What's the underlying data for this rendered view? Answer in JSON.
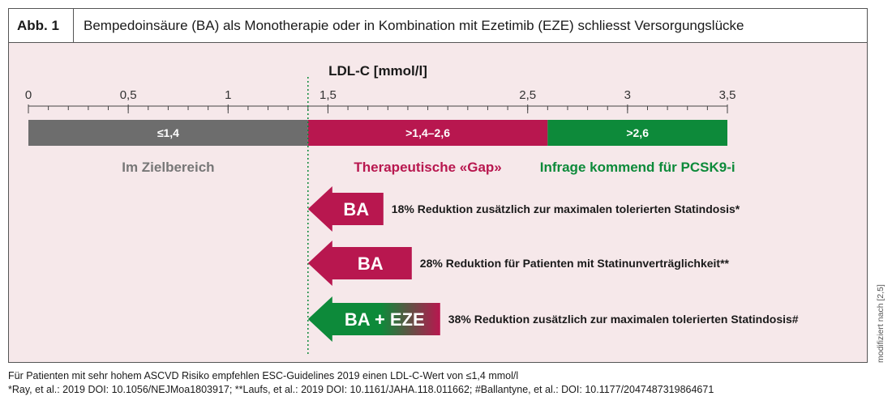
{
  "figure": {
    "label": "Abb. 1",
    "title": "Bempedoinsäure (BA) als Monotherapie oder in Kombination mit Ezetimib (EZE) schliesst Versorgungslücke"
  },
  "chart_data": {
    "type": "bar",
    "title": "LDL-C [mmol/l]",
    "axis": {
      "min": 0,
      "max": 3.5,
      "major_ticks": [
        0,
        0.5,
        1,
        1.5,
        2.5,
        3,
        3.5
      ],
      "major_labels": [
        "0",
        "0,5",
        "1",
        "1,5",
        "2,5",
        "3",
        "3,5"
      ],
      "minor_step": 0.1
    },
    "threshold": 1.4,
    "segments": [
      {
        "from": 0,
        "to": 1.4,
        "label": "≤1,4",
        "category": "Im Zielbereich",
        "color": "#6d6d6d",
        "text_color": "#777777"
      },
      {
        "from": 1.4,
        "to": 2.6,
        "label": ">1,4–2,6",
        "category": "Therapeutische «Gap»",
        "color": "#b8174f",
        "text_color": "#b8174f"
      },
      {
        "from": 2.6,
        "to": 3.5,
        "label": ">2,6",
        "category": "Infrage kommend für PCSK9-i",
        "color": "#0d8a3a",
        "text_color": "#0d8a3a"
      }
    ],
    "arrows": [
      {
        "label": "BA",
        "reduction_pct": 18,
        "text": "18% Reduktion zusätzlich zur maximalen tolerierten Statindosis*",
        "color": "#b8174f",
        "gradient": false
      },
      {
        "label": "BA",
        "reduction_pct": 28,
        "text": "28% Reduktion für Patienten mit Statinunverträglichkeit**",
        "color": "#b8174f",
        "gradient": false
      },
      {
        "label": "BA + EZE",
        "reduction_pct": 38,
        "text": "38% Reduktion zusätzlich zur maximalen tolerierten Statindosis#",
        "color": "#0d8a3a",
        "gradient_to": "#b8174f",
        "gradient": true
      }
    ]
  },
  "side_note": "modifiziert nach [2,5]",
  "footnotes": {
    "line1": "Für Patienten mit sehr hohem ASCVD Risiko empfehlen ESC-Guidelines 2019 einen LDL-C-Wert von ≤1,4 mmol/l",
    "line2": "*Ray, et al.: 2019 DOI: 10.1056/NEJMoa1803917; **Laufs, et al.: 2019 DOI: 10.1161/JAHA.118.011662; #Ballantyne, et al.: DOI: 10.1177/2047487319864671"
  }
}
